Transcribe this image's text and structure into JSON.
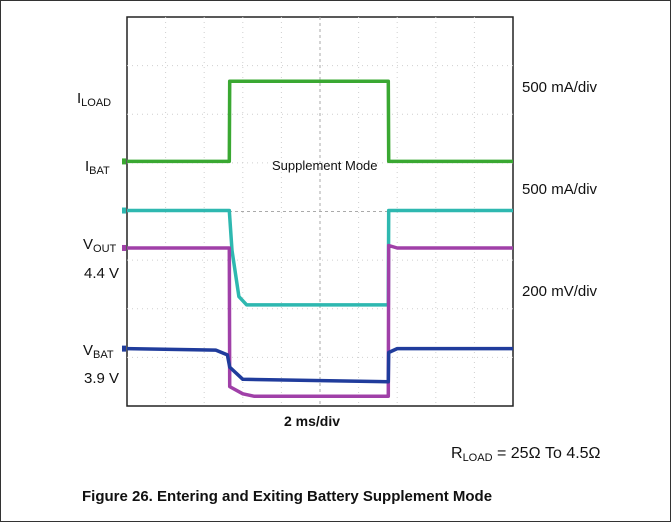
{
  "chart_data": {
    "type": "line",
    "x_scale": "2 ms/div",
    "x_divisions": 10,
    "y_divisions": 8,
    "grid": true,
    "series": [
      {
        "name": "ILOAD",
        "color": "#3aa832",
        "scale": "500 mA/div",
        "x": [
          0,
          2.65,
          2.66,
          6.77,
          6.78,
          10
        ],
        "y": [
          5.03,
          5.03,
          6.68,
          6.68,
          5.03,
          5.03
        ]
      },
      {
        "name": "IBAT",
        "color": "#2eb8b0",
        "scale": "500 mA/div",
        "x": [
          0,
          2.65,
          2.72,
          2.9,
          3.1,
          6.77,
          6.78,
          10
        ],
        "y": [
          4.02,
          4.02,
          3.2,
          2.25,
          2.08,
          2.08,
          4.02,
          4.02
        ]
      },
      {
        "name": "VOUT",
        "color": "#a040a8",
        "scale": "200 mV/div",
        "x": [
          0,
          2.65,
          2.66,
          3.0,
          3.3,
          6.77,
          6.78,
          7.0,
          10
        ],
        "y": [
          3.25,
          3.25,
          0.4,
          0.25,
          0.2,
          0.2,
          3.3,
          3.25,
          3.25
        ]
      },
      {
        "name": "VBAT",
        "color": "#203c9c",
        "scale": "200 mV/div",
        "x": [
          0,
          2.3,
          2.6,
          2.66,
          3.0,
          6.77,
          6.78,
          7.0,
          10
        ],
        "y": [
          1.18,
          1.15,
          1.05,
          0.8,
          0.55,
          0.5,
          1.1,
          1.18,
          1.18
        ]
      }
    ],
    "annotations": {
      "mode_label": "Supplement Mode",
      "x_scale_label": "2 ms/div",
      "load_scale": "500 mA/div",
      "bat_scale": "500 mA/div",
      "voltage_scale": "200 mV/div"
    }
  },
  "labels": {
    "iload_main": "I",
    "iload_sub": "LOAD",
    "ibat_main": "I",
    "ibat_sub": "BAT",
    "vout_main": "V",
    "vout_sub": "OUT",
    "vout_level": "4.4 V",
    "vbat_main": "V",
    "vbat_sub": "BAT",
    "vbat_level": "3.9 V"
  },
  "condition": {
    "r_main": "R",
    "r_sub": "LOAD",
    "text": " = 25Ω To 4.5Ω"
  },
  "caption": "Figure 26. Entering and Exiting Battery Supplement Mode"
}
